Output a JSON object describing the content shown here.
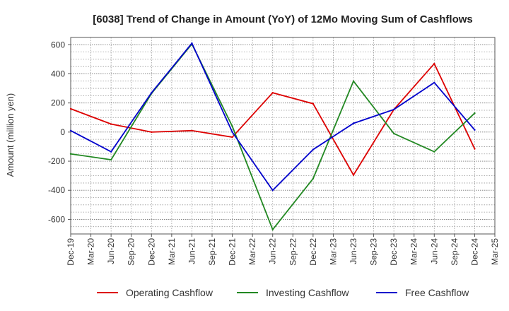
{
  "chart_data": {
    "type": "line",
    "title": "[6038]  Trend of Change in Amount (YoY) of 12Mo Moving Sum of Cashflows",
    "xlabel": "",
    "ylabel": "Amount (million yen)",
    "ylim": [
      -700,
      650
    ],
    "yticks": [
      -600,
      -400,
      -200,
      0,
      200,
      400,
      600
    ],
    "ytick_labels": [
      "-600",
      "-400",
      "-200",
      "0",
      "200",
      "400",
      "600"
    ],
    "categories": [
      "Dec-19",
      "Mar-20",
      "Jun-20",
      "Sep-20",
      "Dec-20",
      "Mar-21",
      "Jun-21",
      "Sep-21",
      "Dec-21",
      "Mar-22",
      "Jun-22",
      "Sep-22",
      "Dec-22",
      "Mar-23",
      "Jun-23",
      "Sep-23",
      "Dec-23",
      "Mar-24",
      "Jun-24",
      "Sep-24",
      "Dec-24",
      "Mar-25"
    ],
    "grid": true,
    "legend_position": "bottom",
    "series": [
      {
        "name": "Operating Cashflow",
        "color": "#dd0000",
        "points": [
          [
            "Dec-19",
            160
          ],
          [
            "Jun-20",
            55
          ],
          [
            "Dec-20",
            0
          ],
          [
            "Jun-21",
            10
          ],
          [
            "Dec-21",
            -35
          ],
          [
            "Jun-22",
            270
          ],
          [
            "Dec-22",
            195
          ],
          [
            "Jun-23",
            -295
          ],
          [
            "Dec-23",
            155
          ],
          [
            "Jun-24",
            470
          ],
          [
            "Dec-24",
            -115
          ]
        ]
      },
      {
        "name": "Investing Cashflow",
        "color": "#228822",
        "points": [
          [
            "Dec-19",
            -150
          ],
          [
            "Jun-20",
            -190
          ],
          [
            "Dec-20",
            265
          ],
          [
            "Jun-21",
            605
          ],
          [
            "Dec-21",
            40
          ],
          [
            "Jun-22",
            -670
          ],
          [
            "Dec-22",
            -320
          ],
          [
            "Jun-23",
            350
          ],
          [
            "Dec-23",
            -10
          ],
          [
            "Jun-24",
            -135
          ],
          [
            "Dec-24",
            130
          ]
        ]
      },
      {
        "name": "Free Cashflow",
        "color": "#0000cc",
        "points": [
          [
            "Dec-19",
            10
          ],
          [
            "Jun-20",
            -135
          ],
          [
            "Dec-20",
            270
          ],
          [
            "Jun-21",
            610
          ],
          [
            "Dec-21",
            0
          ],
          [
            "Jun-22",
            -400
          ],
          [
            "Dec-22",
            -120
          ],
          [
            "Jun-23",
            60
          ],
          [
            "Dec-23",
            155
          ],
          [
            "Jun-24",
            340
          ],
          [
            "Dec-24",
            15
          ]
        ]
      }
    ]
  }
}
